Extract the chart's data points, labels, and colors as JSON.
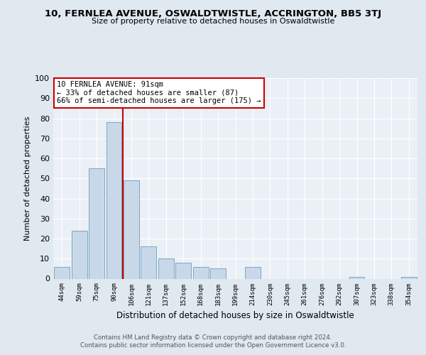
{
  "title": "10, FERNLEA AVENUE, OSWALDTWISTLE, ACCRINGTON, BB5 3TJ",
  "subtitle": "Size of property relative to detached houses in Oswaldtwistle",
  "xlabel": "Distribution of detached houses by size in Oswaldtwistle",
  "ylabel": "Number of detached properties",
  "bin_labels": [
    "44sqm",
    "59sqm",
    "75sqm",
    "90sqm",
    "106sqm",
    "121sqm",
    "137sqm",
    "152sqm",
    "168sqm",
    "183sqm",
    "199sqm",
    "214sqm",
    "230sqm",
    "245sqm",
    "261sqm",
    "276sqm",
    "292sqm",
    "307sqm",
    "323sqm",
    "338sqm",
    "354sqm"
  ],
  "bar_values": [
    6,
    24,
    55,
    78,
    49,
    16,
    10,
    8,
    6,
    5,
    0,
    6,
    0,
    0,
    0,
    0,
    0,
    1,
    0,
    0,
    1
  ],
  "bar_color": "#c8d8e8",
  "bar_edge_color": "#7aa8c8",
  "vline_x": 3.5,
  "vline_color": "#cc0000",
  "annotation_text": "10 FERNLEA AVENUE: 91sqm\n← 33% of detached houses are smaller (87)\n66% of semi-detached houses are larger (175) →",
  "annotation_box_color": "#ffffff",
  "annotation_box_edge": "#cc0000",
  "ylim": [
    0,
    100
  ],
  "yticks": [
    0,
    10,
    20,
    30,
    40,
    50,
    60,
    70,
    80,
    90,
    100
  ],
  "bg_color": "#e0e8f0",
  "plot_bg_color": "#eaf0f6",
  "footer_line1": "Contains HM Land Registry data © Crown copyright and database right 2024.",
  "footer_line2": "Contains public sector information licensed under the Open Government Licence v3.0."
}
